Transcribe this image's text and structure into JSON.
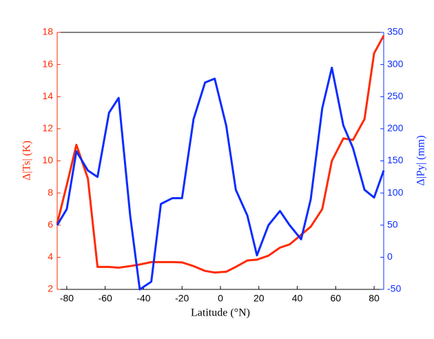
{
  "chart_data": {
    "type": "line",
    "x": [
      -85,
      -80,
      -75,
      -69,
      -64,
      -58,
      -53,
      -47,
      -42,
      -36,
      -31,
      -25,
      -20,
      -14,
      -8,
      -3,
      3,
      8,
      14,
      19,
      25,
      31,
      36,
      42,
      47,
      53,
      58,
      64,
      69,
      75,
      80,
      85
    ],
    "xlabel": "Latitude (°N)",
    "ylabel": "Δ|Ts| (K)",
    "y2label": "Δ|Py| (mm)",
    "xlim": [
      -85,
      85
    ],
    "xticks": [
      -80,
      -60,
      -40,
      -20,
      0,
      20,
      40,
      60,
      80
    ],
    "ylim": [
      2,
      18
    ],
    "yticks": [
      2,
      4,
      6,
      8,
      10,
      12,
      14,
      16,
      18
    ],
    "y2lim": [
      -50,
      350
    ],
    "y2ticks": [
      -50,
      0,
      50,
      100,
      150,
      200,
      250,
      300,
      350
    ],
    "series": [
      {
        "name": "Δ|Ts|",
        "color": "#ff2a00",
        "values": [
          6.1,
          8.5,
          11.0,
          8.9,
          3.4,
          3.4,
          3.35,
          3.45,
          3.55,
          3.7,
          3.7,
          3.7,
          3.68,
          3.45,
          3.15,
          3.05,
          3.1,
          3.4,
          3.8,
          3.85,
          4.1,
          4.6,
          4.8,
          5.4,
          5.9,
          7.0,
          10.0,
          11.4,
          11.3,
          12.6,
          16.7,
          17.8
        ]
      },
      {
        "name": "Δ|Py|",
        "color": "#0a2cff",
        "axis": "y2",
        "values": [
          50,
          75,
          165,
          135,
          125,
          225,
          248,
          65,
          -50,
          -38,
          83,
          92,
          92,
          215,
          272,
          278,
          205,
          105,
          65,
          3,
          50,
          72,
          50,
          28,
          90,
          232,
          295,
          205,
          170,
          105,
          93,
          135
        ]
      }
    ]
  }
}
